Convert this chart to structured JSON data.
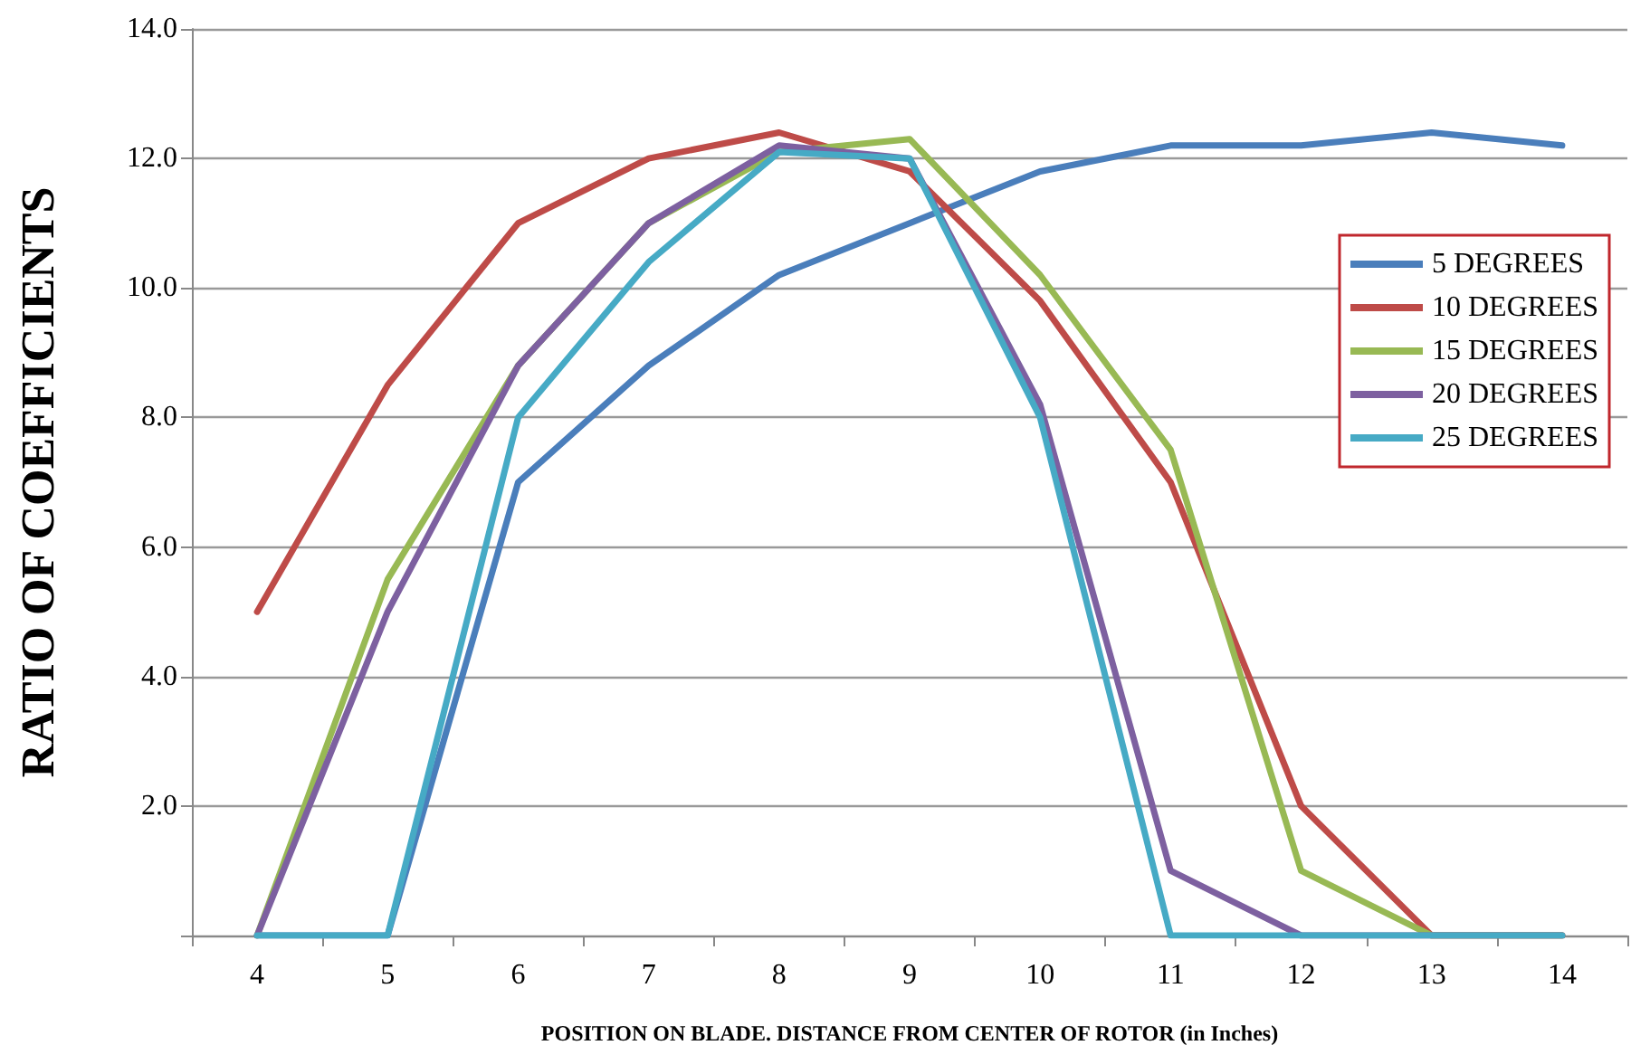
{
  "chart_data": {
    "type": "line",
    "xlabel": "POSITION ON BLADE. DISTANCE FROM CENTER OF ROTOR (in Inches)",
    "ylabel": "RATIO OF COEFFICIENTS",
    "categories": [
      "4",
      "5",
      "6",
      "7",
      "8",
      "9",
      "10",
      "11",
      "12",
      "13",
      "14"
    ],
    "series": [
      {
        "name": "5 DEGREES",
        "color": "#4a7ebb",
        "values": [
          0,
          0,
          7.0,
          8.8,
          10.2,
          11.0,
          11.8,
          12.2,
          12.2,
          12.4,
          12.2
        ]
      },
      {
        "name": "10 DEGREES",
        "color": "#be4b48",
        "values": [
          5.0,
          8.5,
          11.0,
          12.0,
          12.4,
          11.8,
          9.8,
          7.0,
          2.0,
          0,
          0
        ]
      },
      {
        "name": "15 DEGREES",
        "color": "#98b954",
        "values": [
          0,
          5.5,
          8.8,
          11.0,
          12.1,
          12.3,
          10.2,
          7.5,
          1.0,
          0,
          0
        ]
      },
      {
        "name": "20 DEGREES",
        "color": "#7d60a0",
        "values": [
          0,
          5.0,
          8.8,
          11.0,
          12.2,
          12.0,
          8.2,
          1.0,
          0,
          0,
          0
        ]
      },
      {
        "name": "25 DEGREES",
        "color": "#46aac5",
        "values": [
          0,
          0,
          8.0,
          10.4,
          12.1,
          12.0,
          8.0,
          0,
          0,
          0,
          0
        ]
      }
    ],
    "ylim": [
      0,
      14
    ],
    "yticks": [
      {
        "value": 0,
        "label": null
      },
      {
        "value": 2,
        "label": "2.0"
      },
      {
        "value": 4,
        "label": "4.0"
      },
      {
        "value": 6,
        "label": "6.0"
      },
      {
        "value": 8,
        "label": "8.0"
      },
      {
        "value": 10,
        "label": "10.0"
      },
      {
        "value": 12,
        "label": "12.0"
      },
      {
        "value": 14,
        "label": "14.0"
      }
    ],
    "grid": "y",
    "legend": "right",
    "marker": "none",
    "line_style": "solid"
  }
}
